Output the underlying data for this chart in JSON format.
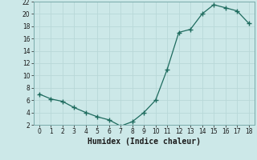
{
  "x": [
    0,
    1,
    2,
    3,
    4,
    5,
    6,
    7,
    8,
    9,
    10,
    11,
    12,
    13,
    14,
    15,
    16,
    17,
    18
  ],
  "y": [
    7.0,
    6.2,
    5.8,
    4.8,
    4.0,
    3.3,
    2.8,
    1.8,
    2.5,
    4.0,
    6.0,
    11.0,
    17.0,
    17.5,
    20.0,
    21.5,
    21.0,
    20.5,
    18.5
  ],
  "xlabel": "Humidex (Indice chaleur)",
  "line_color": "#1e6b5e",
  "bg_color": "#cce8e8",
  "grid_color": "#b8d8d8",
  "ylim": [
    2,
    22
  ],
  "xlim": [
    -0.5,
    18.5
  ],
  "yticks": [
    2,
    4,
    6,
    8,
    10,
    12,
    14,
    16,
    18,
    20,
    22
  ],
  "xticks": [
    0,
    1,
    2,
    3,
    4,
    5,
    6,
    7,
    8,
    9,
    10,
    11,
    12,
    13,
    14,
    15,
    16,
    17,
    18
  ],
  "tick_fontsize": 5.5,
  "xlabel_fontsize": 7.0
}
